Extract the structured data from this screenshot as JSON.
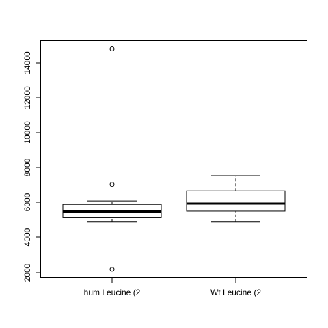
{
  "chart_data": {
    "type": "box",
    "title": "",
    "xlabel": "",
    "ylabel": "",
    "ylim": [
      1750,
      15400
    ],
    "yticks": [
      2000,
      4000,
      6000,
      8000,
      10000,
      12000,
      14000
    ],
    "ytick_labels": [
      "2000",
      "4000",
      "6000",
      "8000",
      "10000",
      "12000",
      "14000"
    ],
    "categories": [
      "hum Leucine (2",
      "Wt Leucine (2"
    ],
    "boxes": [
      {
        "category": "hum Leucine (2",
        "whisker_low": 4900,
        "q1": 5150,
        "median": 5500,
        "q3": 5900,
        "whisker_high": 6100,
        "outliers": [
          14800,
          7050,
          2200
        ]
      },
      {
        "category": "Wt Leucine (2",
        "whisker_low": 4900,
        "q1": 5520,
        "median": 5950,
        "q3": 6680,
        "whisker_high": 7550,
        "outliers": []
      }
    ],
    "grid": false
  }
}
